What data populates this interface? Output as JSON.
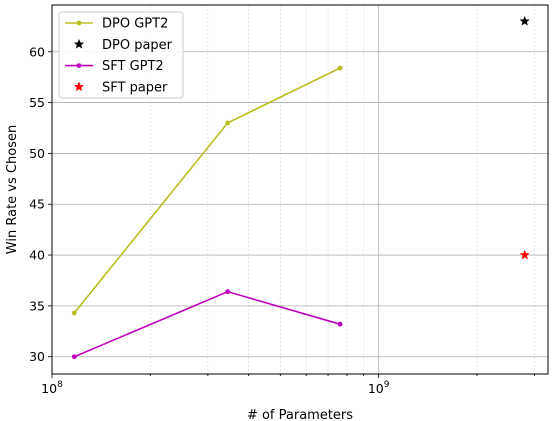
{
  "chart_data": {
    "type": "line",
    "xlabel": "# of Parameters",
    "ylabel": "Win Rate vs Chosen",
    "xscale": "log",
    "xlim": [
      100000000,
      3300000000
    ],
    "ylim": [
      28.3,
      64.6
    ],
    "x_ticks": [
      {
        "value": 100000000,
        "base": "10",
        "exp": "8"
      },
      {
        "value": 1000000000,
        "base": "10",
        "exp": "9"
      }
    ],
    "y_ticks": [
      30,
      35,
      40,
      45,
      50,
      55,
      60
    ],
    "grid": {
      "major": true,
      "minor_x": true
    },
    "legend_position": "top-left",
    "series": [
      {
        "name": "DPO GPT2",
        "kind": "line",
        "marker": "dot",
        "color": "#bcbd22",
        "points": [
          [
            117000000,
            34.3
          ],
          [
            345000000,
            53.0
          ],
          [
            762000000,
            58.4
          ]
        ]
      },
      {
        "name": "DPO paper",
        "kind": "point",
        "marker": "star",
        "color": "#000000",
        "points": [
          [
            2800000000,
            63.0
          ]
        ]
      },
      {
        "name": "SFT GPT2",
        "kind": "line",
        "marker": "dot",
        "color": "#bf00bf",
        "points": [
          [
            117000000,
            30.0
          ],
          [
            345000000,
            36.4
          ],
          [
            762000000,
            33.2
          ]
        ]
      },
      {
        "name": "SFT paper",
        "kind": "point",
        "marker": "star",
        "color": "#ff0000",
        "points": [
          [
            2800000000,
            40.0
          ]
        ]
      }
    ]
  }
}
